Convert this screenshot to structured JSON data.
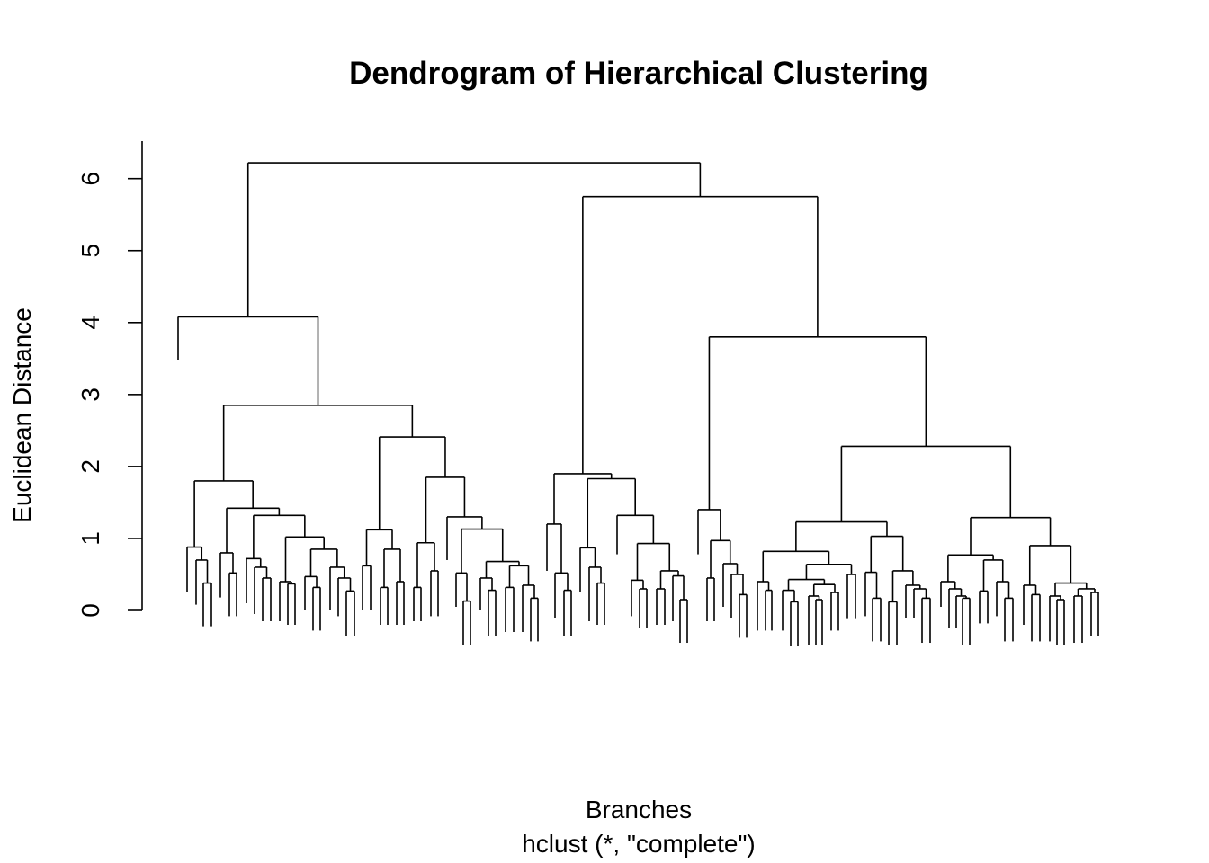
{
  "chart_data": {
    "type": "dendrogram",
    "title": "Dendrogram of Hierarchical Clustering",
    "xlabel": "Branches",
    "subtitle": "hclust (*, \"complete\")",
    "ylabel": "Euclidean Distance",
    "ylim": [
      0,
      6.5
    ],
    "yticks": [
      "0",
      "1",
      "2",
      "3",
      "4",
      "5",
      "6"
    ],
    "merge_heights": [
      {
        "name": "root",
        "height": 6.22
      },
      {
        "name": "left-cluster",
        "height": 4.08
      },
      {
        "name": "right-cluster",
        "height": 5.75
      },
      {
        "name": "left-main",
        "height": 2.85
      },
      {
        "name": "left-main-a",
        "height": 1.8
      },
      {
        "name": "left-main-b",
        "height": 2.41
      },
      {
        "name": "right-a",
        "height": 1.9
      },
      {
        "name": "right-b",
        "height": 3.8
      },
      {
        "name": "right-b-1",
        "height": 1.4
      },
      {
        "name": "right-b-2",
        "height": 2.28
      },
      {
        "name": "right-b-2-a",
        "height": 1.23
      },
      {
        "name": "right-b-2-b",
        "height": 1.29
      }
    ]
  }
}
